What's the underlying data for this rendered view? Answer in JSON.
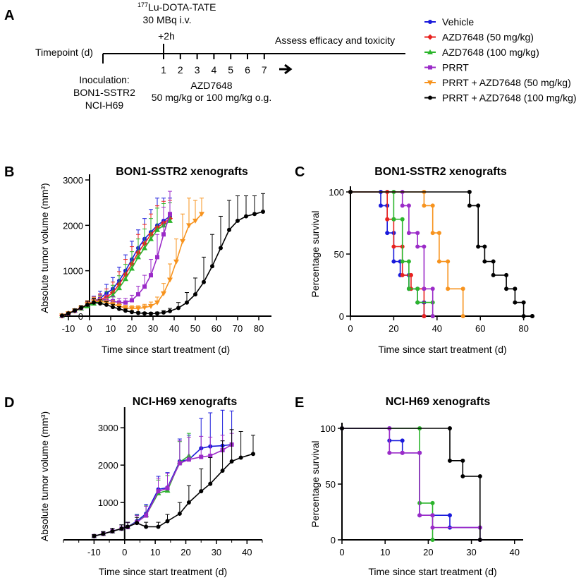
{
  "panel_a": {
    "letter": "A",
    "isotope_sup": "177",
    "isotope_rest": "Lu-DOTA-TATE",
    "dose": "30 MBq i.v.",
    "plus2h": "+2h",
    "assess": "Assess efficacy and toxicity",
    "timepoint_label": "Timepoint (d)",
    "day_ticks": [
      "1",
      "2",
      "3",
      "4",
      "5",
      "6",
      "7"
    ],
    "inoculation": [
      "Inoculation:",
      "BON1-SSTR2",
      "NCI-H69"
    ],
    "drug": "AZD7648",
    "drug_dose": "50 mg/kg or 100 mg/kg o.g."
  },
  "legend": [
    {
      "label": "Vehicle",
      "color": "#1a1adb",
      "marker": "circle"
    },
    {
      "label": "AZD7648 (50 mg/kg)",
      "color": "#e8221f",
      "marker": "diamond"
    },
    {
      "label": "AZD7648 (100 mg/kg)",
      "color": "#2cb52c",
      "marker": "triangle-up"
    },
    {
      "label": "PRRT",
      "color": "#9b2bc8",
      "marker": "square"
    },
    {
      "label": "PRRT + AZD7648 (50 mg/kg)",
      "color": "#f7931e",
      "marker": "triangle-down"
    },
    {
      "label": "PRRT + AZD7648 (100 mg/kg)",
      "color": "#000000",
      "marker": "circle"
    }
  ],
  "chart_data": [
    {
      "id": "B",
      "letter": "B",
      "type": "line",
      "title": "BON1-SSTR2 xenografts",
      "xlabel": "Time since start treatment (d)",
      "ylabel": "Absolute tumor volume (mm³)",
      "xlim": [
        -14,
        86
      ],
      "ylim": [
        0,
        3000
      ],
      "xticks": [
        -10,
        0,
        10,
        20,
        30,
        40,
        50,
        60,
        70,
        80
      ],
      "yticks": [
        0,
        1000,
        2000,
        3000
      ],
      "series": [
        {
          "name": "Vehicle",
          "color": "#1a1adb",
          "marker": "circle",
          "x": [
            -13,
            -10,
            -7,
            -4,
            -1,
            2,
            5,
            8,
            11,
            14,
            17,
            20,
            23,
            26,
            29,
            32,
            35,
            38
          ],
          "y": [
            10,
            60,
            120,
            180,
            250,
            320,
            400,
            500,
            600,
            780,
            1000,
            1250,
            1500,
            1700,
            1850,
            2000,
            2100,
            2200
          ],
          "err": [
            5,
            20,
            40,
            50,
            80,
            120,
            150,
            200,
            250,
            300,
            350,
            400,
            400,
            450,
            500,
            600,
            500,
            400
          ]
        },
        {
          "name": "AZD7648 (50 mg/kg)",
          "color": "#e8221f",
          "marker": "diamond",
          "x": [
            -13,
            -10,
            -7,
            -4,
            -1,
            2,
            5,
            8,
            11,
            14,
            17,
            20,
            23,
            26,
            29,
            32,
            35,
            38
          ],
          "y": [
            10,
            60,
            120,
            180,
            240,
            300,
            360,
            420,
            520,
            700,
            920,
            1150,
            1400,
            1600,
            1800,
            1950,
            2050,
            2150
          ],
          "err": [
            5,
            20,
            40,
            50,
            70,
            100,
            130,
            180,
            230,
            280,
            330,
            380,
            400,
            420,
            450,
            480,
            480,
            400
          ]
        },
        {
          "name": "AZD7648 (100 mg/kg)",
          "color": "#2cb52c",
          "marker": "triangle-up",
          "x": [
            -13,
            -10,
            -7,
            -4,
            -1,
            2,
            5,
            8,
            11,
            14,
            17,
            20,
            23,
            26,
            29,
            32,
            35,
            38
          ],
          "y": [
            10,
            60,
            120,
            170,
            220,
            280,
            330,
            380,
            460,
            620,
            820,
            1050,
            1300,
            1500,
            1700,
            1900,
            2000,
            2100
          ],
          "err": [
            5,
            20,
            40,
            50,
            70,
            100,
            130,
            170,
            220,
            270,
            320,
            370,
            400,
            420,
            450,
            480,
            480,
            400
          ]
        },
        {
          "name": "PRRT",
          "color": "#9b2bc8",
          "marker": "square",
          "x": [
            -13,
            -10,
            -7,
            -4,
            -1,
            2,
            5,
            8,
            11,
            14,
            17,
            20,
            23,
            26,
            29,
            32,
            35,
            38
          ],
          "y": [
            10,
            60,
            120,
            180,
            260,
            330,
            360,
            360,
            330,
            300,
            300,
            350,
            480,
            650,
            900,
            1300,
            1800,
            2250
          ],
          "err": [
            5,
            20,
            40,
            50,
            80,
            100,
            110,
            110,
            100,
            90,
            90,
            110,
            180,
            250,
            350,
            500,
            600,
            500
          ]
        },
        {
          "name": "PRRT + AZD7648 (50 mg/kg)",
          "color": "#f7931e",
          "marker": "triangle-down",
          "x": [
            -13,
            -10,
            -7,
            -4,
            -1,
            2,
            5,
            8,
            11,
            14,
            17,
            20,
            23,
            26,
            29,
            32,
            35,
            38,
            41,
            44,
            47,
            50,
            53
          ],
          "y": [
            10,
            60,
            120,
            180,
            260,
            320,
            330,
            300,
            260,
            220,
            180,
            170,
            170,
            190,
            220,
            300,
            500,
            800,
            1200,
            1650,
            2000,
            2100,
            2250
          ],
          "err": [
            5,
            20,
            40,
            50,
            80,
            100,
            100,
            90,
            80,
            70,
            60,
            60,
            60,
            70,
            90,
            120,
            220,
            350,
            500,
            600,
            600,
            450,
            350
          ]
        },
        {
          "name": "PRRT + AZD7648 (100 mg/kg)",
          "color": "#000000",
          "marker": "circle",
          "x": [
            -13,
            -10,
            -7,
            -4,
            -1,
            2,
            5,
            8,
            11,
            14,
            17,
            20,
            23,
            26,
            29,
            32,
            35,
            38,
            42,
            46,
            50,
            54,
            58,
            62,
            66,
            70,
            74,
            78,
            82
          ],
          "y": [
            10,
            60,
            120,
            180,
            250,
            300,
            280,
            250,
            200,
            160,
            120,
            90,
            70,
            60,
            55,
            60,
            80,
            110,
            180,
            300,
            480,
            750,
            1100,
            1500,
            1900,
            2100,
            2200,
            2250,
            2300
          ],
          "err": [
            5,
            20,
            40,
            50,
            80,
            90,
            80,
            70,
            60,
            50,
            40,
            30,
            25,
            25,
            25,
            30,
            40,
            60,
            120,
            220,
            360,
            550,
            700,
            700,
            650,
            550,
            450,
            400,
            400
          ]
        }
      ]
    },
    {
      "id": "C",
      "letter": "C",
      "type": "line",
      "title": "BON1-SSTR2 xenografts",
      "xlabel": "Time since start treatment (d)",
      "ylabel": "Percentage survival",
      "xlim": [
        0,
        85
      ],
      "ylim": [
        0,
        100
      ],
      "xticks": [
        0,
        20,
        40,
        60,
        80
      ],
      "yticks": [
        0,
        50,
        100
      ],
      "series": [
        {
          "name": "Vehicle",
          "color": "#1a1adb",
          "x": [
            0,
            14,
            14,
            17,
            17,
            20,
            20,
            23,
            23,
            27,
            27,
            31,
            31,
            34,
            34
          ],
          "y": [
            100,
            100,
            89,
            89,
            67,
            67,
            44,
            44,
            33,
            33,
            22,
            22,
            11,
            11,
            0
          ]
        },
        {
          "name": "AZD7648 (50 mg/kg)",
          "color": "#e8221f",
          "x": [
            0,
            17,
            17,
            20,
            20,
            24,
            24,
            28,
            28,
            34,
            34
          ],
          "y": [
            100,
            100,
            78,
            78,
            56,
            56,
            33,
            33,
            22,
            22,
            0
          ]
        },
        {
          "name": "AZD7648 (100 mg/kg)",
          "color": "#2cb52c",
          "x": [
            0,
            20,
            20,
            24,
            24,
            27,
            27,
            31,
            31,
            38,
            38
          ],
          "y": [
            100,
            100,
            78,
            78,
            44,
            44,
            22,
            22,
            11,
            11,
            0
          ]
        },
        {
          "name": "PRRT",
          "color": "#9b2bc8",
          "x": [
            0,
            24,
            24,
            27,
            27,
            31,
            31,
            34,
            34,
            38,
            38
          ],
          "y": [
            100,
            100,
            89,
            89,
            67,
            67,
            56,
            56,
            22,
            22,
            0
          ]
        },
        {
          "name": "PRRT + AZD7648 (50 mg/kg)",
          "color": "#f7931e",
          "x": [
            0,
            34,
            34,
            38,
            38,
            41,
            41,
            45,
            45,
            52,
            52
          ],
          "y": [
            100,
            100,
            89,
            89,
            67,
            67,
            44,
            44,
            22,
            22,
            0
          ]
        },
        {
          "name": "PRRT + AZD7648 (100 mg/kg)",
          "color": "#000000",
          "x": [
            0,
            55,
            55,
            59,
            59,
            62,
            62,
            66,
            66,
            72,
            72,
            76,
            76,
            80,
            80,
            84,
            84
          ],
          "y": [
            100,
            100,
            89,
            89,
            56,
            56,
            44,
            44,
            33,
            33,
            22,
            22,
            11,
            11,
            0,
            0,
            0
          ]
        }
      ]
    },
    {
      "id": "D",
      "letter": "D",
      "type": "line",
      "title": "NCI-H69 xenografts",
      "xlabel": "Time since start treatment (d)",
      "ylabel": "Absolute tumor volume (mm³)",
      "xlim": [
        -20,
        45
      ],
      "ylim": [
        0,
        3400
      ],
      "xticks": [
        -10,
        0,
        10,
        20,
        30,
        40
      ],
      "yticks": [
        1000,
        2000,
        3000
      ],
      "series": [
        {
          "name": "Vehicle",
          "color": "#1a1adb",
          "marker": "circle",
          "x": [
            -10,
            -7,
            -4,
            -1,
            1,
            4,
            7,
            11,
            14,
            18,
            21,
            25,
            28,
            32,
            35
          ],
          "y": [
            100,
            160,
            230,
            300,
            350,
            500,
            700,
            1350,
            1400,
            2100,
            2150,
            2450,
            2500,
            2520,
            2550
          ],
          "err": [
            40,
            60,
            80,
            100,
            120,
            180,
            250,
            350,
            400,
            600,
            650,
            800,
            900,
            950,
            900
          ]
        },
        {
          "name": "AZD7648 (100 mg/kg)",
          "color": "#2cb52c",
          "marker": "triangle-up",
          "x": [
            -10,
            -7,
            -4,
            -1,
            1,
            4,
            7,
            11,
            14,
            18,
            21
          ],
          "y": [
            100,
            160,
            230,
            300,
            340,
            480,
            660,
            1250,
            1320,
            2080,
            2250
          ],
          "err": [
            40,
            60,
            80,
            100,
            120,
            180,
            250,
            350,
            400,
            550,
            600
          ]
        },
        {
          "name": "PRRT",
          "color": "#9b2bc8",
          "marker": "square",
          "x": [
            -10,
            -7,
            -4,
            -1,
            1,
            4,
            7,
            11,
            14,
            18,
            21,
            25,
            28,
            32,
            35
          ],
          "y": [
            100,
            160,
            230,
            300,
            340,
            470,
            650,
            1300,
            1380,
            2050,
            2150,
            2220,
            2250,
            2400,
            2550
          ],
          "err": [
            40,
            60,
            80,
            100,
            120,
            180,
            250,
            350,
            400,
            600,
            600,
            550,
            500,
            400,
            300
          ]
        },
        {
          "name": "PRRT + AZD7648 (100 mg/kg)",
          "color": "#000000",
          "marker": "circle",
          "x": [
            -10,
            -7,
            -4,
            -1,
            1,
            4,
            7,
            11,
            14,
            18,
            21,
            25,
            28,
            32,
            35,
            38,
            42
          ],
          "y": [
            100,
            160,
            230,
            300,
            350,
            450,
            350,
            350,
            500,
            700,
            1000,
            1300,
            1500,
            1850,
            2100,
            2200,
            2300
          ],
          "err": [
            40,
            60,
            80,
            100,
            120,
            150,
            120,
            120,
            180,
            300,
            450,
            600,
            700,
            800,
            850,
            700,
            500
          ]
        }
      ]
    },
    {
      "id": "E",
      "letter": "E",
      "type": "line",
      "title": "NCI-H69 xenografts",
      "xlabel": "Time since start treatment (d)",
      "ylabel": "Percentage survival",
      "xlim": [
        0,
        42
      ],
      "ylim": [
        0,
        100
      ],
      "xticks": [
        0,
        10,
        20,
        30,
        40
      ],
      "yticks": [
        0,
        50,
        100
      ],
      "series": [
        {
          "name": "Vehicle",
          "color": "#1a1adb",
          "x": [
            0,
            11,
            11,
            14,
            14,
            18,
            18,
            21,
            21,
            25,
            25,
            32,
            32
          ],
          "y": [
            100,
            100,
            89,
            89,
            78,
            78,
            22,
            22,
            22,
            22,
            11,
            11,
            0
          ]
        },
        {
          "name": "AZD7648 (100 mg/kg)",
          "color": "#2cb52c",
          "x": [
            0,
            18,
            18,
            21,
            21
          ],
          "y": [
            100,
            100,
            33,
            33,
            0
          ]
        },
        {
          "name": "PRRT",
          "color": "#9b2bc8",
          "x": [
            0,
            11,
            11,
            14,
            14,
            18,
            18,
            21,
            21,
            32,
            32
          ],
          "y": [
            100,
            100,
            78,
            78,
            78,
            78,
            22,
            22,
            11,
            11,
            0
          ]
        },
        {
          "name": "PRRT + AZD7648 (100 mg/kg)",
          "color": "#000000",
          "x": [
            0,
            25,
            25,
            28,
            28,
            32,
            32
          ],
          "y": [
            100,
            100,
            71,
            71,
            57,
            57,
            0
          ]
        }
      ]
    }
  ]
}
